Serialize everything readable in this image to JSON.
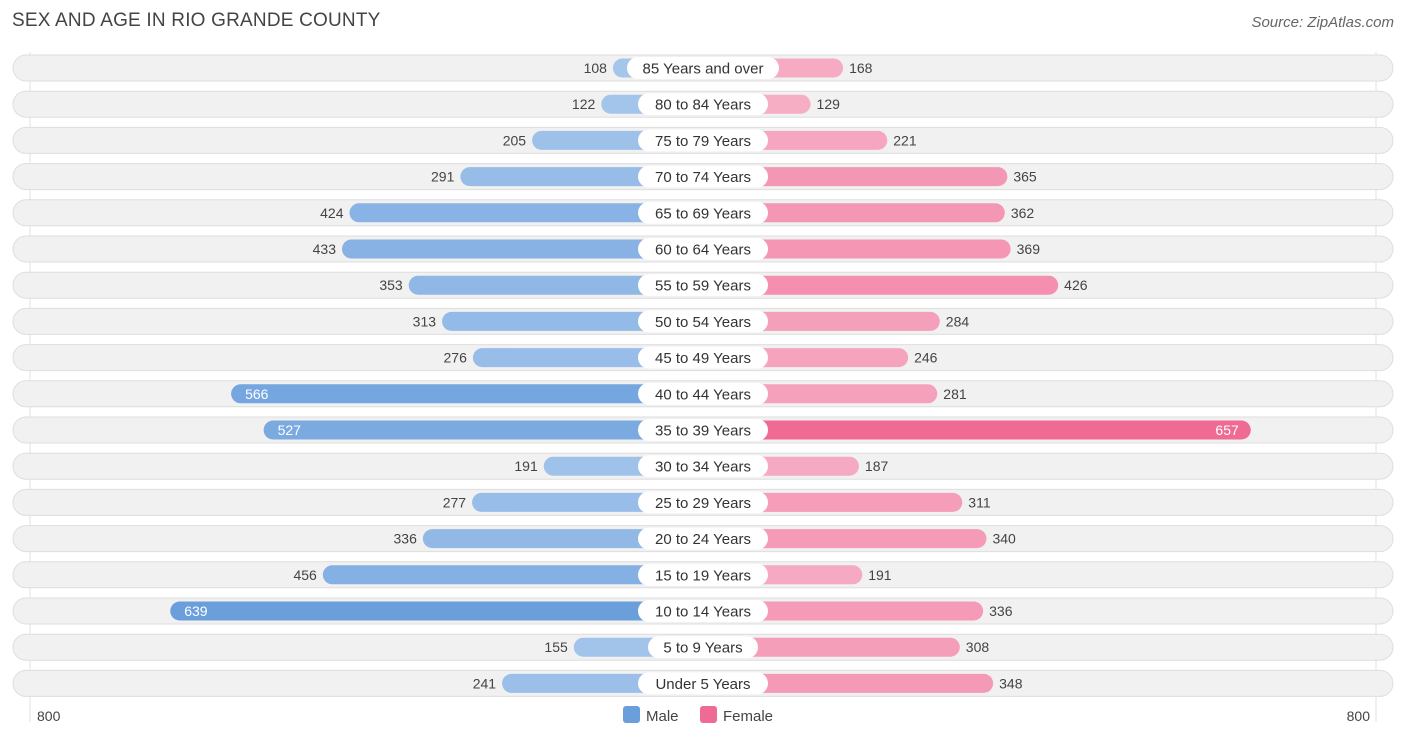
{
  "title": "SEX AND AGE IN RIO GRANDE COUNTY",
  "source": "Source: ZipAtlas.com",
  "colors": {
    "male_light": "#a8c8ec",
    "male_dark": "#6a9fdc",
    "female_light": "#f7b3c9",
    "female_dark": "#f06b94",
    "row_bg": "#f1f1f1",
    "row_border": "#dedede"
  },
  "chart_data": {
    "type": "bar",
    "orientation": "horizontal-diverging",
    "title": "SEX AND AGE IN RIO GRANDE COUNTY",
    "categories": [
      "85 Years and over",
      "80 to 84 Years",
      "75 to 79 Years",
      "70 to 74 Years",
      "65 to 69 Years",
      "60 to 64 Years",
      "55 to 59 Years",
      "50 to 54 Years",
      "45 to 49 Years",
      "40 to 44 Years",
      "35 to 39 Years",
      "30 to 34 Years",
      "25 to 29 Years",
      "20 to 24 Years",
      "15 to 19 Years",
      "10 to 14 Years",
      "5 to 9 Years",
      "Under 5 Years"
    ],
    "series": [
      {
        "name": "Male",
        "values": [
          108,
          122,
          205,
          291,
          424,
          433,
          353,
          313,
          276,
          566,
          527,
          191,
          277,
          336,
          456,
          639,
          155,
          241
        ]
      },
      {
        "name": "Female",
        "values": [
          168,
          129,
          221,
          365,
          362,
          369,
          426,
          284,
          246,
          281,
          657,
          187,
          311,
          340,
          191,
          336,
          308,
          348
        ]
      }
    ],
    "xlim": [
      -800,
      800
    ],
    "axis_left_label": "800",
    "axis_right_label": "800",
    "legend": [
      "Male",
      "Female"
    ],
    "legend_position": "bottom-center"
  }
}
